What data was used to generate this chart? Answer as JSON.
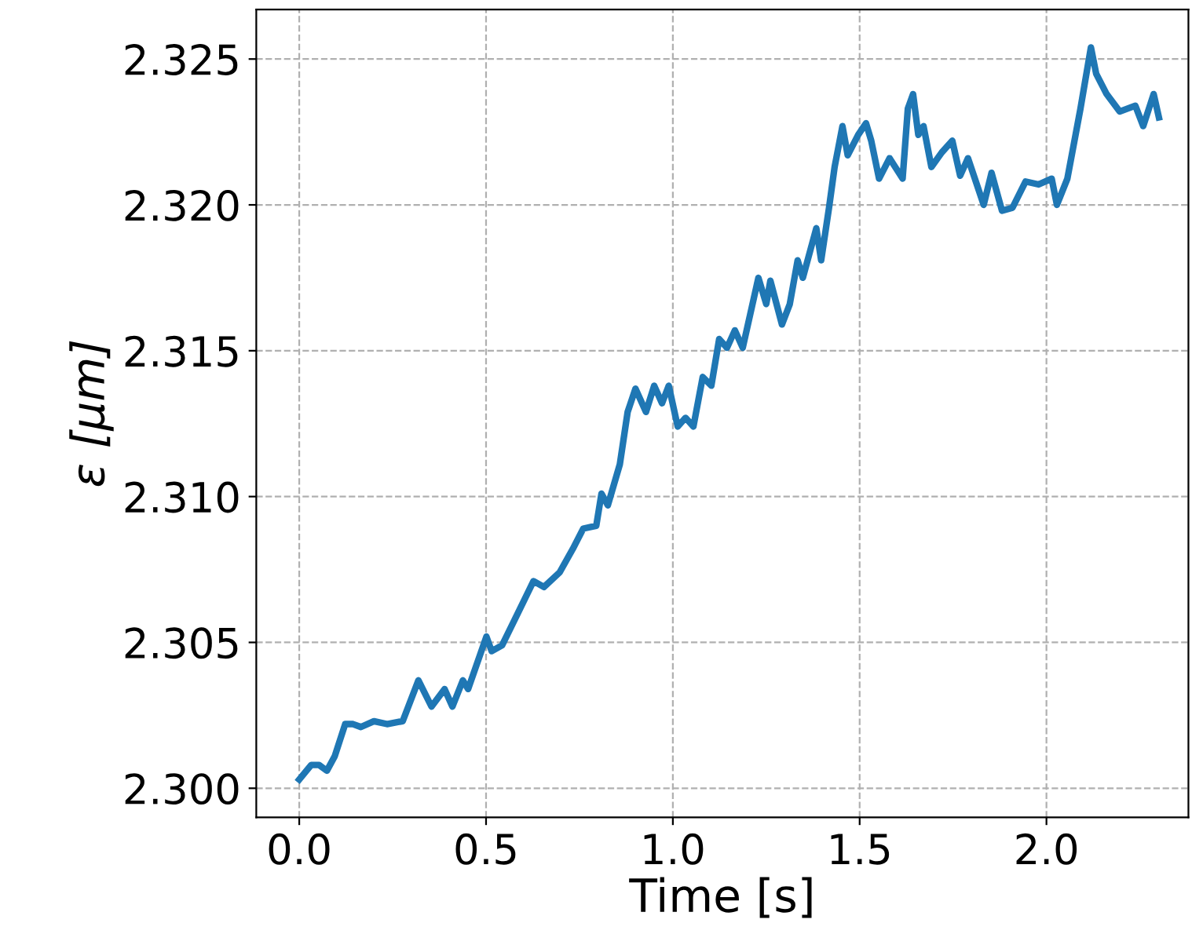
{
  "chart_data": {
    "type": "line",
    "xlabel": "Time [s]",
    "ylabel": "ε [μm]",
    "x": [
      0,
      0.032,
      0.053,
      0.074,
      0.095,
      0.123,
      0.144,
      0.165,
      0.2,
      0.235,
      0.277,
      0.319,
      0.354,
      0.389,
      0.41,
      0.438,
      0.452,
      0.501,
      0.515,
      0.543,
      0.585,
      0.627,
      0.655,
      0.697,
      0.732,
      0.76,
      0.795,
      0.809,
      0.826,
      0.858,
      0.879,
      0.9,
      0.928,
      0.95,
      0.971,
      0.989,
      1.013,
      1.034,
      1.055,
      1.08,
      1.103,
      1.124,
      1.145,
      1.166,
      1.187,
      1.229,
      1.25,
      1.261,
      1.292,
      1.313,
      1.334,
      1.348,
      1.384,
      1.397,
      1.418,
      1.433,
      1.454,
      1.468,
      1.496,
      1.517,
      1.531,
      1.552,
      1.58,
      1.615,
      1.629,
      1.643,
      1.657,
      1.671,
      1.692,
      1.72,
      1.748,
      1.769,
      1.79,
      1.832,
      1.853,
      1.881,
      1.909,
      1.944,
      1.979,
      2.014,
      2.028,
      2.056,
      2.091,
      2.119,
      2.133,
      2.161,
      2.196,
      2.238,
      2.259,
      2.287,
      2.301
    ],
    "series": [
      {
        "color": "#1f77b4",
        "values": [
          2.3003,
          2.3008,
          2.3008,
          2.3006,
          2.3011,
          2.3022,
          2.3022,
          2.3021,
          2.3023,
          2.3022,
          2.3023,
          2.3037,
          2.3028,
          2.3034,
          2.3028,
          2.3037,
          2.3034,
          2.3052,
          2.3047,
          2.3049,
          2.306,
          2.3071,
          2.3069,
          2.3074,
          2.3082,
          2.3089,
          2.309,
          2.3101,
          2.3097,
          2.3111,
          2.3129,
          2.3137,
          2.3129,
          2.3138,
          2.3132,
          2.3138,
          2.3124,
          2.3127,
          2.3124,
          2.3141,
          2.3138,
          2.3154,
          2.3151,
          2.3157,
          2.3151,
          2.3175,
          2.3166,
          2.3174,
          2.3159,
          2.3166,
          2.3181,
          2.3175,
          2.3192,
          2.3181,
          2.3199,
          2.3213,
          2.3227,
          2.3217,
          2.3224,
          2.3228,
          2.3222,
          2.3209,
          2.3216,
          2.3209,
          2.3233,
          2.3238,
          2.3224,
          2.3227,
          2.3213,
          2.3218,
          2.3222,
          2.321,
          2.3216,
          2.32,
          2.3211,
          2.3198,
          2.3199,
          2.3208,
          2.3207,
          2.3209,
          2.32,
          2.3209,
          2.3233,
          2.3254,
          2.3245,
          2.3238,
          2.3232,
          2.3234,
          2.3227,
          2.3238,
          2.323
        ]
      }
    ],
    "xlim": [
      -0.115,
      2.38
    ],
    "ylim": [
      2.299,
      2.3267
    ],
    "xticks": [
      {
        "value": 0,
        "label": "0.0"
      },
      0.5,
      {
        "value": 1,
        "label": "1.0"
      },
      1.5,
      {
        "value": 2,
        "label": "2.0"
      }
    ],
    "yticks": [
      {
        "value": 2.3,
        "label": "2.300"
      },
      2.305,
      {
        "value": 2.31,
        "label": "2.310"
      },
      2.315,
      {
        "value": 2.32,
        "label": "2.320"
      },
      2.325
    ],
    "grid": true,
    "line_style": "solid",
    "marker": "none"
  }
}
